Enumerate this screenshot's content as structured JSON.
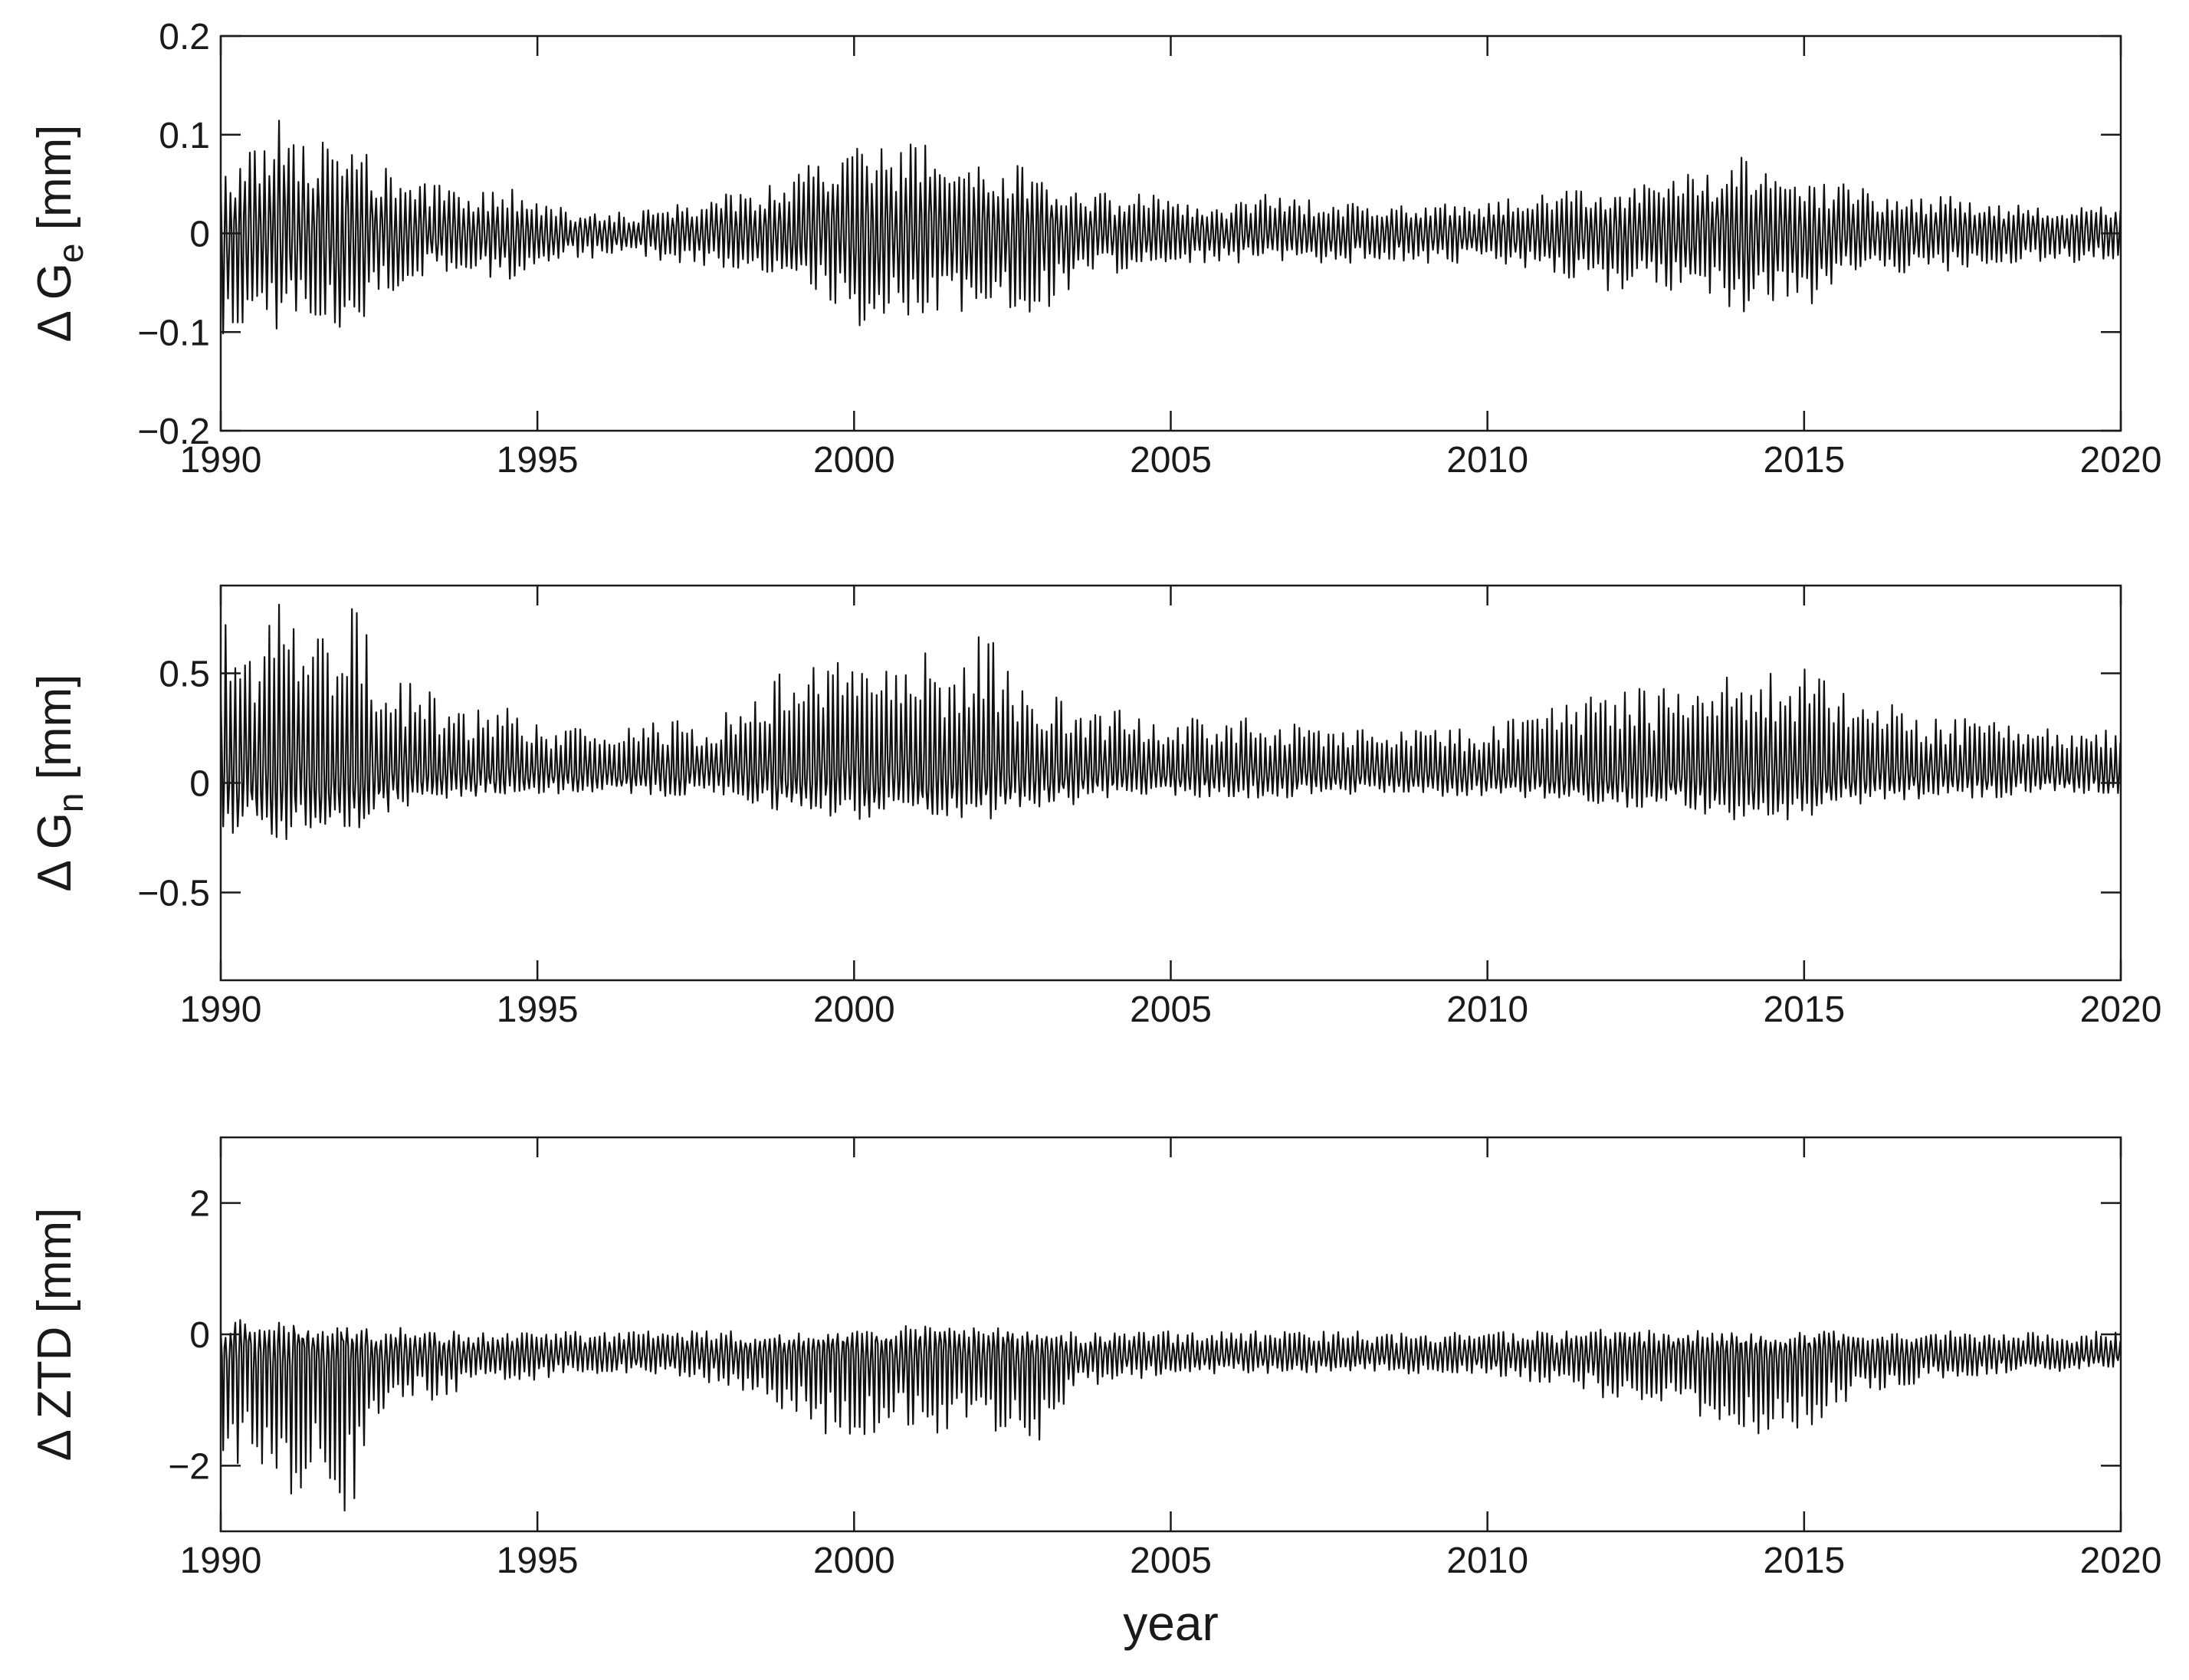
{
  "chart_data": [
    {
      "type": "line",
      "ylabel": {
        "prefix": "Δ G",
        "sub": "e",
        "unit": " [mm]"
      },
      "xlim": [
        1990,
        2020
      ],
      "ylim": [
        -0.2,
        0.2
      ],
      "xticks": [
        1990,
        1995,
        2000,
        2005,
        2010,
        2015,
        2020
      ],
      "yticks": [
        -0.2,
        -0.1,
        0,
        0.1,
        0.2
      ],
      "ytick_labels": [
        "−0.2",
        "−0.1",
        "0",
        "0.1",
        "0.2"
      ],
      "x": [
        1990.0,
        1990.5,
        1991.0,
        1991.5,
        1992.0,
        1992.5,
        1993.0,
        1993.5,
        1994.0,
        1994.5,
        1995.0,
        1995.5,
        1996.0,
        1996.5,
        1997.0,
        1997.5,
        1998.0,
        1998.5,
        1999.0,
        1999.5,
        2000.0,
        2000.5,
        2001.0,
        2001.5,
        2002.0,
        2002.5,
        2003.0,
        2003.5,
        2004.0,
        2004.5,
        2005.0,
        2005.5,
        2006.0,
        2006.5,
        2007.0,
        2007.5,
        2008.0,
        2008.5,
        2009.0,
        2009.5,
        2010.0,
        2010.5,
        2011.0,
        2011.5,
        2012.0,
        2012.5,
        2013.0,
        2013.5,
        2014.0,
        2014.5,
        2015.0,
        2015.5,
        2016.0,
        2016.5,
        2017.0,
        2017.5,
        2018.0,
        2018.5,
        2019.0,
        2019.5,
        2020.0
      ],
      "upper": [
        0.06,
        0.09,
        0.13,
        0.09,
        0.1,
        0.07,
        0.05,
        0.05,
        0.04,
        0.05,
        0.03,
        0.025,
        0.025,
        0.02,
        0.03,
        0.03,
        0.04,
        0.05,
        0.06,
        0.08,
        0.09,
        0.09,
        0.1,
        0.07,
        0.07,
        0.07,
        0.06,
        0.05,
        0.04,
        0.04,
        0.04,
        0.03,
        0.03,
        0.04,
        0.04,
        0.03,
        0.03,
        0.03,
        0.03,
        0.03,
        0.03,
        0.04,
        0.04,
        0.05,
        0.05,
        0.06,
        0.06,
        0.06,
        0.08,
        0.06,
        0.06,
        0.05,
        0.05,
        0.04,
        0.04,
        0.04,
        0.03,
        0.03,
        0.03,
        0.03,
        0.03
      ],
      "lower": [
        -0.12,
        -0.09,
        -0.1,
        -0.1,
        -0.11,
        -0.07,
        -0.05,
        -0.04,
        -0.04,
        -0.05,
        -0.03,
        -0.025,
        -0.025,
        -0.02,
        -0.03,
        -0.03,
        -0.04,
        -0.05,
        -0.06,
        -0.07,
        -0.1,
        -0.08,
        -0.09,
        -0.09,
        -0.08,
        -0.08,
        -0.08,
        -0.05,
        -0.04,
        -0.04,
        -0.03,
        -0.03,
        -0.03,
        -0.03,
        -0.03,
        -0.03,
        -0.03,
        -0.03,
        -0.03,
        -0.03,
        -0.03,
        -0.04,
        -0.04,
        -0.05,
        -0.06,
        -0.06,
        -0.06,
        -0.07,
        -0.09,
        -0.08,
        -0.08,
        -0.05,
        -0.04,
        -0.04,
        -0.04,
        -0.04,
        -0.03,
        -0.03,
        -0.03,
        -0.03,
        -0.03
      ],
      "center": 0
    },
    {
      "type": "line",
      "ylabel": {
        "prefix": "Δ G",
        "sub": "n",
        "unit": " [mm]"
      },
      "xlim": [
        1990,
        2020
      ],
      "ylim": [
        -0.9,
        0.9
      ],
      "xticks": [
        1990,
        1995,
        2000,
        2005,
        2010,
        2015,
        2020
      ],
      "yticks": [
        -0.5,
        0,
        0.5
      ],
      "ytick_labels": [
        "−0.5",
        "0",
        "0.5"
      ],
      "x": [
        1990.0,
        1990.5,
        1991.0,
        1991.5,
        1992.0,
        1992.5,
        1993.0,
        1993.5,
        1994.0,
        1994.5,
        1995.0,
        1995.5,
        1996.0,
        1996.5,
        1997.0,
        1997.5,
        1998.0,
        1998.5,
        1999.0,
        1999.5,
        2000.0,
        2000.5,
        2001.0,
        2001.5,
        2002.0,
        2002.5,
        2003.0,
        2003.5,
        2004.0,
        2004.5,
        2005.0,
        2005.5,
        2006.0,
        2006.5,
        2007.0,
        2007.5,
        2008.0,
        2008.5,
        2009.0,
        2009.5,
        2010.0,
        2010.5,
        2011.0,
        2011.5,
        2012.0,
        2012.5,
        2013.0,
        2013.5,
        2014.0,
        2014.5,
        2015.0,
        2015.5,
        2016.0,
        2016.5,
        2017.0,
        2017.5,
        2018.0,
        2018.5,
        2019.0,
        2019.5,
        2020.0
      ],
      "upper": [
        0.75,
        0.7,
        0.9,
        0.7,
        0.85,
        0.6,
        0.45,
        0.4,
        0.35,
        0.35,
        0.3,
        0.25,
        0.25,
        0.25,
        0.3,
        0.3,
        0.35,
        0.45,
        0.55,
        0.55,
        0.6,
        0.55,
        0.65,
        0.5,
        0.75,
        0.5,
        0.45,
        0.35,
        0.35,
        0.3,
        0.3,
        0.3,
        0.3,
        0.3,
        0.3,
        0.25,
        0.25,
        0.25,
        0.25,
        0.25,
        0.25,
        0.3,
        0.35,
        0.4,
        0.45,
        0.45,
        0.45,
        0.5,
        0.55,
        0.55,
        0.55,
        0.45,
        0.4,
        0.35,
        0.3,
        0.3,
        0.3,
        0.25,
        0.25,
        0.25,
        0.25
      ],
      "lower": [
        -0.25,
        -0.2,
        -0.3,
        -0.25,
        -0.25,
        -0.15,
        -0.1,
        -0.08,
        -0.06,
        -0.06,
        -0.05,
        -0.05,
        -0.05,
        -0.05,
        -0.06,
        -0.06,
        -0.08,
        -0.1,
        -0.15,
        -0.15,
        -0.2,
        -0.15,
        -0.18,
        -0.15,
        -0.18,
        -0.15,
        -0.12,
        -0.1,
        -0.08,
        -0.07,
        -0.07,
        -0.07,
        -0.07,
        -0.07,
        -0.07,
        -0.06,
        -0.06,
        -0.06,
        -0.06,
        -0.06,
        -0.06,
        -0.07,
        -0.08,
        -0.1,
        -0.12,
        -0.12,
        -0.12,
        -0.15,
        -0.18,
        -0.18,
        -0.17,
        -0.12,
        -0.1,
        -0.08,
        -0.07,
        -0.07,
        -0.07,
        -0.06,
        -0.06,
        -0.06,
        -0.06
      ],
      "center": 0.05
    },
    {
      "type": "line",
      "ylabel": {
        "prefix": "Δ ZTD",
        "sub": "",
        "unit": " [mm]"
      },
      "xlabel": "year",
      "xlim": [
        1990,
        2020
      ],
      "ylim": [
        -3,
        3
      ],
      "xticks": [
        1990,
        1995,
        2000,
        2005,
        2010,
        2015,
        2020
      ],
      "yticks": [
        -2,
        0,
        2
      ],
      "ytick_labels": [
        "−2",
        "0",
        "2"
      ],
      "x": [
        1990.0,
        1990.5,
        1991.0,
        1991.5,
        1992.0,
        1992.5,
        1993.0,
        1993.5,
        1994.0,
        1994.5,
        1995.0,
        1995.5,
        1996.0,
        1996.5,
        1997.0,
        1997.5,
        1998.0,
        1998.5,
        1999.0,
        1999.5,
        2000.0,
        2000.5,
        2001.0,
        2001.5,
        2002.0,
        2002.5,
        2003.0,
        2003.5,
        2004.0,
        2004.5,
        2005.0,
        2005.5,
        2006.0,
        2006.5,
        2007.0,
        2007.5,
        2008.0,
        2008.5,
        2009.0,
        2009.5,
        2010.0,
        2010.5,
        2011.0,
        2011.5,
        2012.0,
        2012.5,
        2013.0,
        2013.5,
        2014.0,
        2014.5,
        2015.0,
        2015.5,
        2016.0,
        2016.5,
        2017.0,
        2017.5,
        2018.0,
        2018.5,
        2019.0,
        2019.5,
        2020.0
      ],
      "upper": [
        0.2,
        0.25,
        0.2,
        0.15,
        0.1,
        0.1,
        0.1,
        0.05,
        0.05,
        0.05,
        0.05,
        0.05,
        0.05,
        0.05,
        0.05,
        0.05,
        0.05,
        0.05,
        0.05,
        0.1,
        0.1,
        0.1,
        0.15,
        0.1,
        0.1,
        0.1,
        0.05,
        0.05,
        0.05,
        0.05,
        0.05,
        0.05,
        0.05,
        0.05,
        0.05,
        0.05,
        0.05,
        0.05,
        0.05,
        0.05,
        0.05,
        0.05,
        0.05,
        0.1,
        0.1,
        0.1,
        0.1,
        0.05,
        0.05,
        0.05,
        0.05,
        0.05,
        0.05,
        0.05,
        0.05,
        0.05,
        0.05,
        0.05,
        0.05,
        0.05,
        0.05
      ],
      "lower": [
        -2.1,
        -2.0,
        -2.5,
        -2.2,
        -2.8,
        -1.5,
        -1.0,
        -1.0,
        -0.8,
        -0.8,
        -0.7,
        -0.6,
        -0.6,
        -0.6,
        -0.6,
        -0.7,
        -0.8,
        -1.0,
        -1.2,
        -1.5,
        -1.7,
        -1.5,
        -1.6,
        -1.5,
        -1.5,
        -1.5,
        -1.7,
        -0.9,
        -0.7,
        -0.7,
        -0.6,
        -0.6,
        -0.6,
        -0.6,
        -0.6,
        -0.6,
        -0.6,
        -0.6,
        -0.6,
        -0.6,
        -0.6,
        -0.7,
        -0.8,
        -0.9,
        -1.0,
        -1.1,
        -1.1,
        -1.3,
        -1.6,
        -1.5,
        -1.6,
        -1.1,
        -0.9,
        -0.8,
        -0.7,
        -0.7,
        -0.6,
        -0.6,
        -0.6,
        -0.5,
        -0.5
      ],
      "center": -0.3
    }
  ]
}
